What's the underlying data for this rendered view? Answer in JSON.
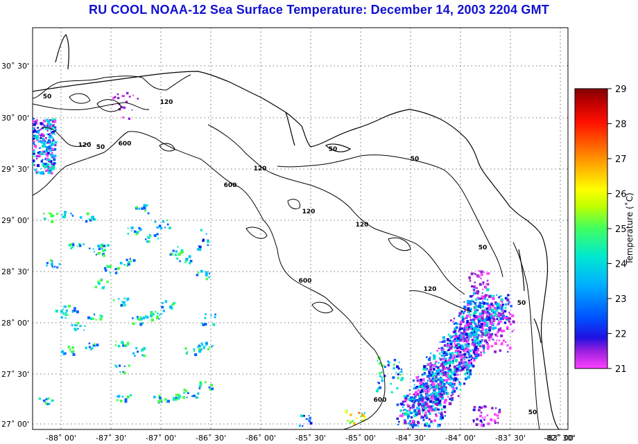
{
  "title": "RU COOL  NOAA-12  Sea Surface Temperature:  December 14, 2003 2204 GMT",
  "map": {
    "lat_ticks": [
      "30˚ 30'",
      "30˚ 00'",
      "29˚ 30'",
      "29˚ 00'",
      "28˚ 30'",
      "28˚ 00'",
      "27˚ 30'",
      "27˚ 00'"
    ],
    "lon_ticks": [
      "-88˚ 00'",
      "-87˚ 30'",
      "-87˚ 00'",
      "-86˚ 30'",
      "-86˚ 00'",
      "-85˚ 30'",
      "-85˚ 00'",
      "-84˚ 30'",
      "-84˚ 00'",
      "-83˚ 30'",
      "-83˚ 00'",
      "-82˚ 30'"
    ],
    "contour_labels": [
      "50",
      "120",
      "50",
      "600",
      "120",
      "50",
      "600",
      "120",
      "120",
      "120",
      "50",
      "600",
      "50",
      "120",
      "50",
      "600",
      "50"
    ],
    "colors": {
      "land_outline": "#000000",
      "grid": "#555555",
      "background": "#ffffff"
    }
  },
  "colorbar": {
    "label": "Temperature (˚C)",
    "ticks": [
      "29",
      "28",
      "27",
      "26",
      "25",
      "24",
      "23",
      "22",
      "21"
    ],
    "range": [
      21,
      29
    ],
    "colors": [
      "#ff40ff",
      "#9020d0",
      "#1010e0",
      "#0060ff",
      "#00c0ff",
      "#00e8c0",
      "#40ff40",
      "#c0ff00",
      "#ffff00",
      "#ffc000",
      "#ff7000",
      "#ff1000",
      "#c00000",
      "#800000"
    ]
  }
}
